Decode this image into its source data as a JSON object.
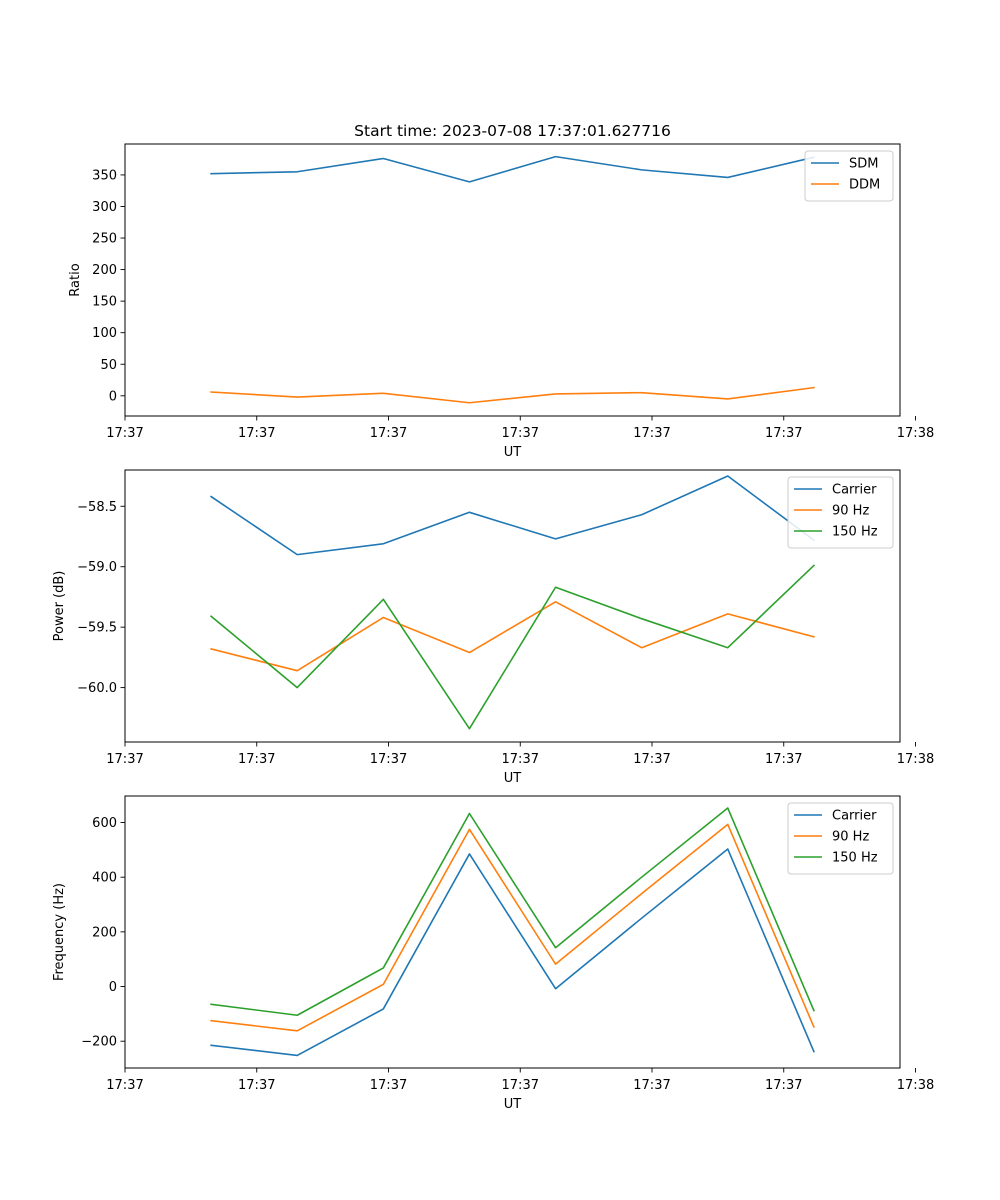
{
  "figure": {
    "title": "Start time: 2023-07-08 17:37:01.627716"
  },
  "chart_data": [
    {
      "type": "line",
      "title": "Start time: 2023-07-08 17:37:01.627716",
      "xlabel": "UT",
      "ylabel": "Ratio",
      "x": [
        1,
        2,
        3,
        4,
        5,
        6,
        7,
        8
      ],
      "xlim": [
        0,
        9
      ],
      "xticks": [
        0,
        1.53,
        3.06,
        4.59,
        6.12,
        7.65,
        9.18
      ],
      "xtick_labels": [
        "17:37",
        "17:37",
        "17:37",
        "17:37",
        "17:37",
        "17:37",
        "17:38"
      ],
      "ylim": [
        -32,
        399
      ],
      "yticks": [
        0,
        50,
        100,
        150,
        200,
        250,
        300,
        350
      ],
      "ytick_labels": [
        "0",
        "50",
        "100",
        "150",
        "200",
        "250",
        "300",
        "350"
      ],
      "legend_position": "top-right",
      "series": [
        {
          "name": "SDM",
          "color": "#1f77b4",
          "values": [
            352,
            355,
            376,
            339,
            379,
            358,
            346,
            378
          ]
        },
        {
          "name": "DDM",
          "color": "#ff7f0e",
          "values": [
            6,
            -2,
            4,
            -11,
            3,
            5,
            -5,
            13
          ]
        }
      ]
    },
    {
      "type": "line",
      "xlabel": "UT",
      "ylabel": "Power (dB)",
      "x": [
        1,
        2,
        3,
        4,
        5,
        6,
        7,
        8
      ],
      "xlim": [
        0,
        9
      ],
      "xticks": [
        0,
        1.53,
        3.06,
        4.59,
        6.12,
        7.65,
        9.18
      ],
      "xtick_labels": [
        "17:37",
        "17:37",
        "17:37",
        "17:37",
        "17:37",
        "17:37",
        "17:38"
      ],
      "ylim": [
        -60.45,
        -58.2
      ],
      "yticks": [
        -60.0,
        -59.5,
        -59.0,
        -58.5
      ],
      "ytick_labels": [
        "−60.0",
        "−59.5",
        "−59.0",
        "−58.5"
      ],
      "legend_position": "top-right",
      "series": [
        {
          "name": "Carrier",
          "color": "#1f77b4",
          "values": [
            -58.42,
            -58.9,
            -58.81,
            -58.55,
            -58.77,
            -58.57,
            -58.25,
            -58.78
          ]
        },
        {
          "name": "90 Hz",
          "color": "#ff7f0e",
          "values": [
            -59.68,
            -59.86,
            -59.42,
            -59.71,
            -59.29,
            -59.67,
            -59.39,
            -59.58
          ]
        },
        {
          "name": "150 Hz",
          "color": "#2ca02c",
          "values": [
            -59.41,
            -60.0,
            -59.27,
            -60.34,
            -59.17,
            -59.43,
            -59.67,
            -58.99
          ]
        }
      ]
    },
    {
      "type": "line",
      "xlabel": "UT",
      "ylabel": "Frequency (Hz)",
      "x": [
        1,
        2,
        3,
        4,
        5,
        6,
        7,
        8
      ],
      "xlim": [
        0,
        9
      ],
      "xticks": [
        0,
        1.53,
        3.06,
        4.59,
        6.12,
        7.65,
        9.18
      ],
      "xtick_labels": [
        "17:37",
        "17:37",
        "17:37",
        "17:37",
        "17:37",
        "17:37",
        "17:38"
      ],
      "ylim": [
        -298,
        697
      ],
      "yticks": [
        -200,
        0,
        200,
        400,
        600
      ],
      "ytick_labels": [
        "−200",
        "0",
        "200",
        "400",
        "600"
      ],
      "legend_position": "top-right",
      "series": [
        {
          "name": "Carrier",
          "color": "#1f77b4",
          "values": [
            -215,
            -252,
            -82,
            485,
            -8,
            250,
            503,
            -238
          ]
        },
        {
          "name": "90 Hz",
          "color": "#ff7f0e",
          "values": [
            -125,
            -162,
            8,
            575,
            82,
            340,
            593,
            -148
          ]
        },
        {
          "name": "150 Hz",
          "color": "#2ca02c",
          "values": [
            -65,
            -105,
            68,
            633,
            142,
            400,
            653,
            -88
          ]
        }
      ]
    }
  ]
}
